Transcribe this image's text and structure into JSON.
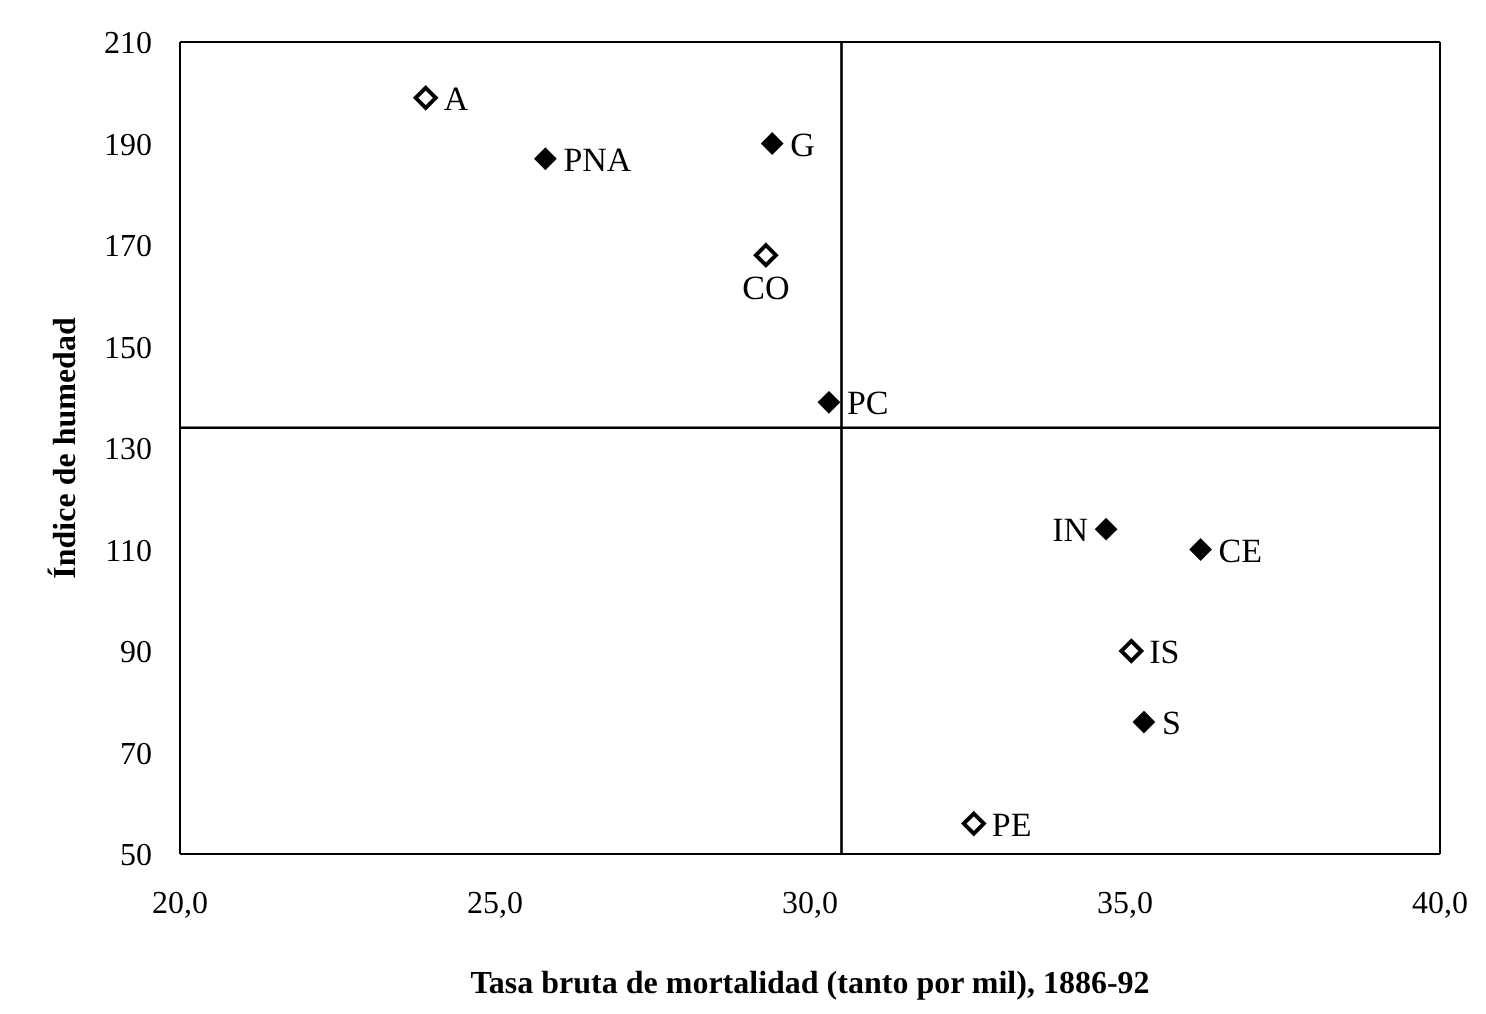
{
  "chart_data": {
    "type": "scatter",
    "xlabel": "Tasa bruta de mortalidad (tanto por mil), 1886-92",
    "ylabel": "Índice de humedad",
    "xlim": [
      20,
      40
    ],
    "xticks": [
      {
        "value": 20,
        "label": "20,0"
      },
      {
        "value": 25,
        "label": "25,0"
      },
      {
        "value": 30,
        "label": "30,0"
      },
      {
        "value": 35,
        "label": "35,0"
      },
      {
        "value": 40,
        "label": "40,0"
      }
    ],
    "ylim": [
      50,
      210
    ],
    "yticks": [
      50,
      70,
      90,
      110,
      130,
      150,
      170,
      190,
      210
    ],
    "marker": "diamond",
    "grid": false,
    "legend": false,
    "series": [
      {
        "color": "#ffffff",
        "x": [
          23.9,
          29.3,
          35.1,
          32.6
        ],
        "values": [
          199,
          168,
          90,
          56
        ]
      },
      {
        "color": "#000000",
        "x": [
          25.8,
          29.4,
          30.3,
          34.7,
          36.2,
          35.3
        ],
        "values": [
          187,
          190,
          139,
          114,
          110,
          76
        ]
      }
    ],
    "ref_lines": [
      {
        "axis": "x",
        "value": 30.5,
        "color": "#000000"
      },
      {
        "axis": "y",
        "value": 134,
        "color": "#000000"
      }
    ],
    "annotations": [
      {
        "text": "A",
        "x": 23.9,
        "y": 199
      },
      {
        "text": "PNA",
        "x": 25.8,
        "y": 187
      },
      {
        "text": "G",
        "x": 29.4,
        "y": 190
      },
      {
        "text": "CO",
        "x": 29.3,
        "y": 168
      },
      {
        "text": "PC",
        "x": 30.3,
        "y": 139
      },
      {
        "text": "IN",
        "x": 34.7,
        "y": 114
      },
      {
        "text": "CE",
        "x": 36.2,
        "y": 110
      },
      {
        "text": "IS",
        "x": 35.1,
        "y": 90
      },
      {
        "text": "S",
        "x": 35.3,
        "y": 76
      },
      {
        "text": "PE",
        "x": 32.6,
        "y": 56
      }
    ]
  }
}
